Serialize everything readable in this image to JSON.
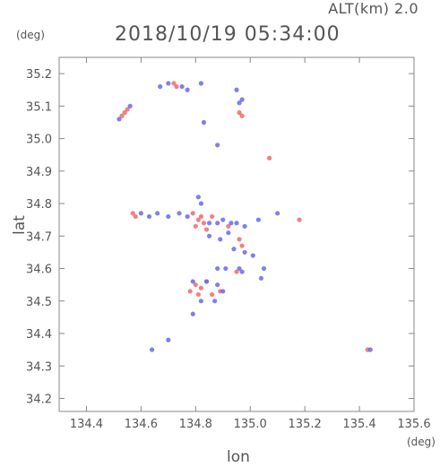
{
  "header": {
    "altitude": "ALT(km) 2.0",
    "timestamp": "2018/10/19 05:34:00"
  },
  "colors": {
    "positive": "#f06a6a",
    "negative": "#6a6ae8",
    "axis": "#888888",
    "text": "#555555"
  },
  "chart_data": {
    "type": "scatter",
    "title": "2018/10/19 05:34:00",
    "subtitle": "ALT(km) 2.0",
    "xlabel": "lon",
    "ylabel": "lat",
    "xunit": "(deg)",
    "yunit": "(deg)",
    "xlim": [
      134.3,
      135.6
    ],
    "ylim": [
      34.16,
      35.25
    ],
    "xticks": [
      134.4,
      134.6,
      134.8,
      135.0,
      135.2,
      135.4,
      135.6
    ],
    "yticks": [
      34.2,
      34.3,
      34.4,
      34.5,
      34.6,
      34.7,
      34.8,
      34.9,
      35.0,
      35.1,
      35.2
    ],
    "xtick_labels": [
      "134.4",
      "134.6",
      "134.8",
      "135.0",
      "135.2",
      "135.4",
      "135.6"
    ],
    "ytick_labels": [
      "34.2",
      "34.3",
      "34.4",
      "34.5",
      "34.6",
      "34.7",
      "34.8",
      "34.9",
      "35.0",
      "35.1",
      "35.2"
    ],
    "grid": false,
    "series": [
      {
        "color": "#f06a6a",
        "points": [
          [
            134.53,
            35.07
          ],
          [
            134.55,
            35.09
          ],
          [
            134.54,
            35.08
          ],
          [
            134.73,
            35.16
          ],
          [
            134.72,
            35.17
          ],
          [
            134.96,
            35.08
          ],
          [
            134.97,
            35.07
          ],
          [
            135.07,
            34.94
          ],
          [
            134.57,
            34.77
          ],
          [
            134.58,
            34.76
          ],
          [
            134.79,
            34.77
          ],
          [
            134.82,
            34.76
          ],
          [
            134.83,
            34.74
          ],
          [
            134.81,
            34.75
          ],
          [
            134.84,
            34.72
          ],
          [
            134.8,
            34.73
          ],
          [
            134.86,
            34.76
          ],
          [
            134.92,
            34.73
          ],
          [
            134.96,
            34.69
          ],
          [
            134.97,
            34.67
          ],
          [
            135.18,
            34.75
          ],
          [
            134.8,
            34.55
          ],
          [
            134.81,
            34.52
          ],
          [
            134.84,
            34.56
          ],
          [
            134.86,
            34.52
          ],
          [
            134.82,
            34.54
          ],
          [
            134.89,
            34.53
          ],
          [
            134.95,
            34.59
          ],
          [
            134.78,
            34.53
          ],
          [
            135.43,
            34.35
          ]
        ]
      },
      {
        "color": "#6a6ae8",
        "points": [
          [
            134.52,
            35.06
          ],
          [
            134.56,
            35.1
          ],
          [
            134.67,
            35.16
          ],
          [
            134.7,
            35.17
          ],
          [
            134.75,
            35.16
          ],
          [
            134.77,
            35.15
          ],
          [
            134.82,
            35.17
          ],
          [
            134.95,
            35.15
          ],
          [
            134.97,
            35.12
          ],
          [
            134.96,
            35.11
          ],
          [
            134.83,
            35.05
          ],
          [
            134.88,
            34.98
          ],
          [
            134.81,
            34.82
          ],
          [
            134.82,
            34.8
          ],
          [
            134.6,
            34.77
          ],
          [
            134.63,
            34.76
          ],
          [
            134.66,
            34.77
          ],
          [
            134.7,
            34.76
          ],
          [
            134.74,
            34.77
          ],
          [
            134.77,
            34.76
          ],
          [
            134.85,
            34.74
          ],
          [
            134.88,
            34.74
          ],
          [
            134.9,
            34.75
          ],
          [
            134.93,
            34.74
          ],
          [
            134.95,
            34.74
          ],
          [
            134.98,
            34.73
          ],
          [
            135.03,
            34.75
          ],
          [
            134.85,
            34.7
          ],
          [
            134.89,
            34.69
          ],
          [
            134.94,
            34.66
          ],
          [
            134.98,
            34.65
          ],
          [
            135.01,
            34.64
          ],
          [
            134.96,
            34.6
          ],
          [
            134.97,
            34.59
          ],
          [
            134.88,
            34.6
          ],
          [
            134.91,
            34.6
          ],
          [
            135.04,
            34.57
          ],
          [
            134.79,
            34.56
          ],
          [
            134.84,
            34.56
          ],
          [
            134.88,
            34.55
          ],
          [
            134.9,
            34.53
          ],
          [
            134.87,
            34.5
          ],
          [
            134.82,
            34.5
          ],
          [
            134.79,
            34.46
          ],
          [
            134.64,
            34.35
          ],
          [
            134.7,
            34.38
          ],
          [
            135.44,
            34.35
          ],
          [
            135.05,
            34.6
          ],
          [
            134.92,
            34.71
          ],
          [
            135.1,
            34.77
          ]
        ]
      }
    ]
  }
}
